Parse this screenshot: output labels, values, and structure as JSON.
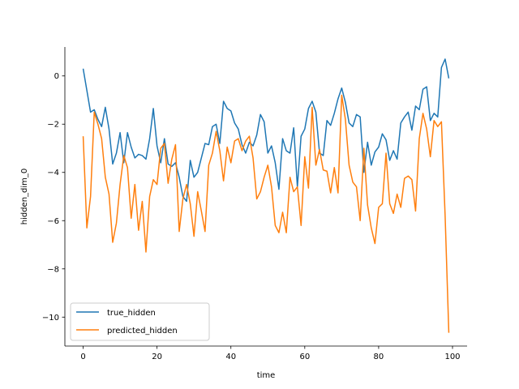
{
  "chart_data": {
    "type": "line",
    "xlabel": "time",
    "ylabel": "hidden_dim_0",
    "xlim": [
      -4.95,
      103.95
    ],
    "ylim": [
      -11.2,
      1.2
    ],
    "xticks": [
      0,
      20,
      40,
      60,
      80,
      100
    ],
    "yticks": [
      0,
      -2,
      -4,
      -6,
      -8,
      -10
    ],
    "xtick_labels": [
      "0",
      "20",
      "40",
      "60",
      "80",
      "100"
    ],
    "ytick_labels": [
      "0",
      "−2",
      "−4",
      "−6",
      "−8",
      "−10"
    ],
    "legend_position": "lower-left",
    "grid": false,
    "x": [
      0,
      1,
      2,
      3,
      4,
      5,
      6,
      7,
      8,
      9,
      10,
      11,
      12,
      13,
      14,
      15,
      16,
      17,
      18,
      19,
      20,
      21,
      22,
      23,
      24,
      25,
      26,
      27,
      28,
      29,
      30,
      31,
      32,
      33,
      34,
      35,
      36,
      37,
      38,
      39,
      40,
      41,
      42,
      43,
      44,
      45,
      46,
      47,
      48,
      49,
      50,
      51,
      52,
      53,
      54,
      55,
      56,
      57,
      58,
      59,
      60,
      61,
      62,
      63,
      64,
      65,
      66,
      67,
      68,
      69,
      70,
      71,
      72,
      73,
      74,
      75,
      76,
      77,
      78,
      79,
      80,
      81,
      82,
      83,
      84,
      85,
      86,
      87,
      88,
      89,
      90,
      91,
      92,
      93,
      94,
      95,
      96,
      97,
      98,
      99
    ],
    "series": [
      {
        "name": "true_hidden",
        "color": "#1f77b4",
        "values": [
          0.3,
          -0.6,
          -1.5,
          -1.4,
          -1.8,
          -2.1,
          -1.3,
          -2.2,
          -3.65,
          -3.2,
          -2.35,
          -3.6,
          -2.35,
          -2.95,
          -3.4,
          -3.25,
          -3.3,
          -3.45,
          -2.6,
          -1.35,
          -2.9,
          -3.6,
          -2.6,
          -3.65,
          -3.75,
          -3.6,
          -4.2,
          -5.0,
          -5.2,
          -3.5,
          -4.2,
          -4.0,
          -3.4,
          -2.8,
          -2.85,
          -2.1,
          -2.0,
          -2.8,
          -1.05,
          -1.35,
          -1.45,
          -1.95,
          -2.2,
          -2.85,
          -3.2,
          -2.75,
          -2.9,
          -2.45,
          -1.6,
          -1.9,
          -3.2,
          -2.9,
          -3.6,
          -4.7,
          -2.6,
          -3.1,
          -3.2,
          -2.15,
          -4.6,
          -2.5,
          -2.2,
          -1.35,
          -1.05,
          -1.5,
          -3.2,
          -3.3,
          -1.85,
          -2.05,
          -1.55,
          -0.95,
          -0.5,
          -1.1,
          -1.95,
          -2.1,
          -1.6,
          -1.7,
          -4.0,
          -2.75,
          -3.7,
          -3.15,
          -2.95,
          -2.4,
          -2.65,
          -3.5,
          -3.1,
          -3.45,
          -1.95,
          -1.7,
          -1.5,
          -2.25,
          -1.25,
          -1.4,
          -0.55,
          -0.45,
          -1.85,
          -1.55,
          -1.7,
          0.35,
          0.7,
          -0.1
        ]
      },
      {
        "name": "predicted_hidden",
        "color": "#ff7f0e",
        "values": [
          -2.5,
          -6.3,
          -5.0,
          -1.5,
          -2.0,
          -2.6,
          -4.2,
          -4.9,
          -6.9,
          -6.1,
          -4.5,
          -3.3,
          -3.8,
          -5.9,
          -4.5,
          -6.4,
          -5.2,
          -7.3,
          -5.0,
          -4.3,
          -4.5,
          -3.0,
          -2.8,
          -4.45,
          -3.45,
          -2.85,
          -6.45,
          -5.1,
          -4.5,
          -5.3,
          -6.65,
          -4.8,
          -5.6,
          -6.45,
          -3.7,
          -3.2,
          -2.3,
          -3.1,
          -4.35,
          -2.95,
          -3.6,
          -2.7,
          -2.6,
          -3.1,
          -2.7,
          -2.5,
          -3.4,
          -5.1,
          -4.8,
          -4.2,
          -3.7,
          -4.6,
          -6.2,
          -6.5,
          -5.65,
          -6.5,
          -4.2,
          -4.8,
          -4.6,
          -6.2,
          -3.35,
          -4.65,
          -1.3,
          -3.7,
          -3.05,
          -3.9,
          -3.95,
          -4.85,
          -3.8,
          -4.85,
          -0.8,
          -1.8,
          -3.7,
          -4.4,
          -4.6,
          -6.0,
          -3.0,
          -5.35,
          -6.3,
          -6.95,
          -5.45,
          -5.3,
          -3.2,
          -5.3,
          -5.7,
          -4.9,
          -5.45,
          -4.25,
          -4.15,
          -4.3,
          -5.6,
          -2.6,
          -1.55,
          -2.2,
          -3.35,
          -1.85,
          -2.1,
          -1.9,
          -5.8,
          -10.65
        ]
      }
    ]
  }
}
